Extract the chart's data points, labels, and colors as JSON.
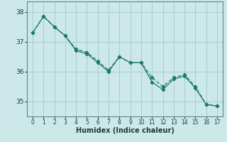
{
  "xlabel": "Humidex (Indice chaleur)",
  "background_color": "#cce8e8",
  "grid_color": "#aacccc",
  "line_color": "#1a7a6a",
  "x": [
    0,
    1,
    2,
    3,
    4,
    5,
    6,
    7,
    8,
    9,
    10,
    11,
    12,
    13,
    14,
    15,
    16,
    17
  ],
  "line1": [
    37.3,
    37.85,
    37.5,
    37.2,
    36.7,
    36.6,
    36.3,
    36.0,
    36.5,
    36.3,
    36.3,
    35.65,
    35.4,
    35.75,
    35.85,
    35.45,
    34.9,
    34.85
  ],
  "line2": [
    37.3,
    37.85,
    37.5,
    37.2,
    36.75,
    36.65,
    36.35,
    36.05,
    36.5,
    36.3,
    36.3,
    35.8,
    35.5,
    35.8,
    35.9,
    35.5,
    34.9,
    34.85
  ],
  "ylim": [
    34.5,
    38.35
  ],
  "yticks": [
    35,
    36,
    37,
    38
  ],
  "xlim": [
    -0.5,
    17.5
  ],
  "xtick_fontsize": 5.5,
  "ytick_fontsize": 6.5,
  "xlabel_fontsize": 7
}
